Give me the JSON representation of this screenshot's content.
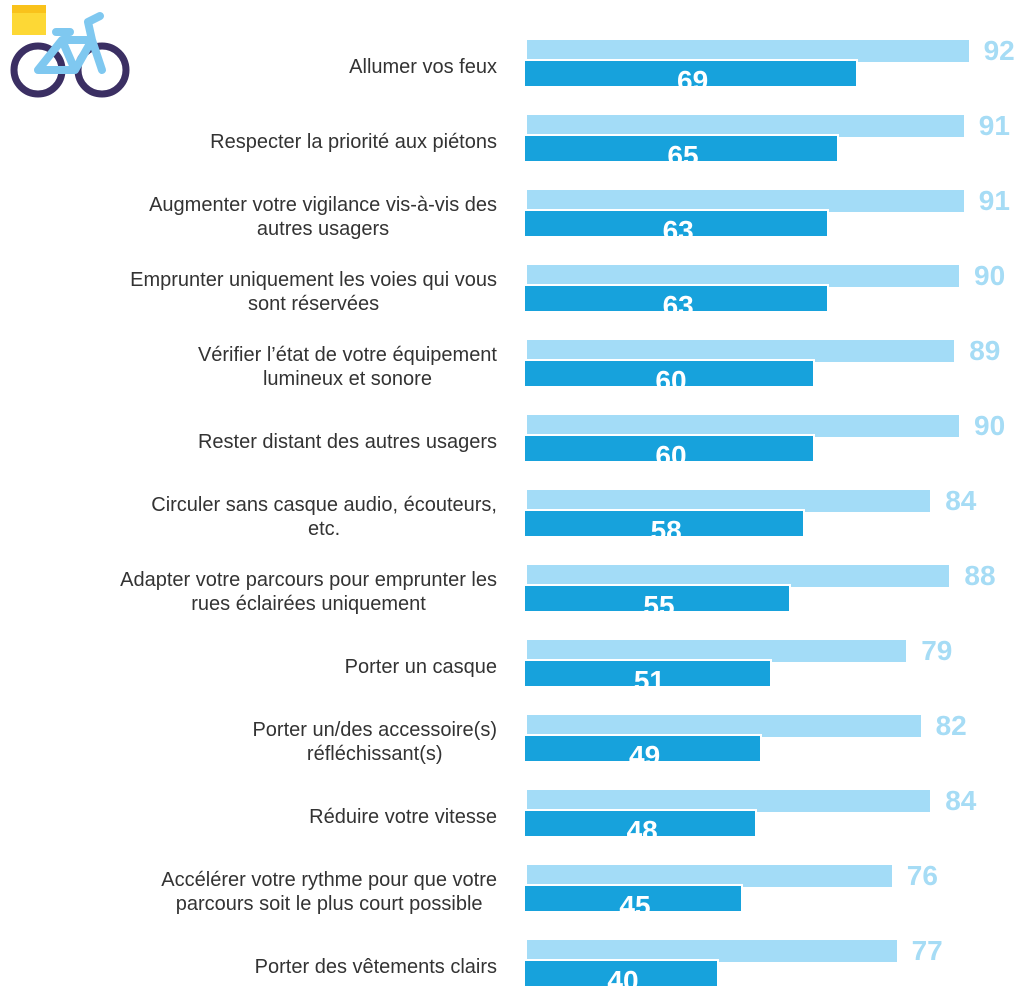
{
  "chart_data": {
    "type": "bar",
    "orientation": "horizontal",
    "categories": [
      "Allumer vos feux",
      "Respecter la priorité aux piétons",
      "Augmenter votre vigilance vis-à-vis des\nautres usagers",
      "Emprunter uniquement les voies qui vous\nsont réservées",
      "Vérifier l’état de votre équipement\nlumineux et sonore",
      "Rester distant des autres usagers",
      "Circuler sans casque audio, écouteurs,\netc.",
      "Adapter votre parcours pour emprunter les\nrues éclairées uniquement",
      "Porter un casque",
      "Porter un/des accessoire(s)\nréfléchissant(s)",
      "Réduire votre vitesse",
      "Accélérer votre rythme pour que votre\nparcours soit le plus court possible",
      "Porter des vêtements clairs"
    ],
    "series": [
      {
        "color": "#a3dcf7",
        "values": [
          92,
          91,
          91,
          90,
          89,
          90,
          84,
          88,
          79,
          82,
          84,
          76,
          77
        ]
      },
      {
        "color": "#17a2dc",
        "values": [
          69,
          65,
          63,
          63,
          60,
          60,
          58,
          55,
          51,
          49,
          48,
          45,
          40
        ]
      }
    ]
  }
}
